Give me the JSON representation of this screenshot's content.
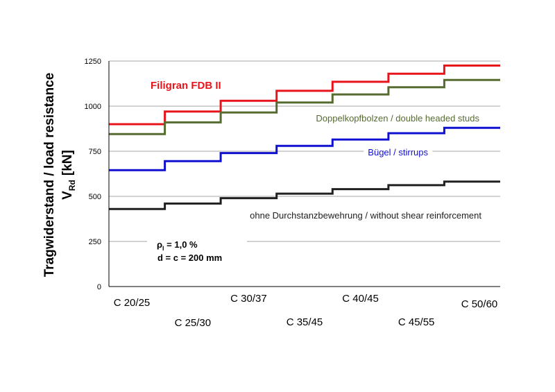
{
  "chart_data": {
    "type": "line",
    "step": true,
    "categories": [
      "C 20/25",
      "C 25/30",
      "C 30/37",
      "C 35/45",
      "C 40/45",
      "C 45/55",
      "C 50/60"
    ],
    "ylabel_line1": "Tragwiderstand / load resistance",
    "ylabel_line2_main": "V",
    "ylabel_line2_sub": "Rd",
    "ylabel_line2_unit": "[kN]",
    "ylim": [
      0,
      1250
    ],
    "yticks": [
      0,
      250,
      500,
      750,
      1000,
      1250
    ],
    "grid": true,
    "series": [
      {
        "name": "Filigran FDB II",
        "color": "#e8141c",
        "values": [
          900,
          970,
          1030,
          1085,
          1135,
          1180,
          1225
        ]
      },
      {
        "name": "Doppelkopfbolzen / double headed studs",
        "color": "#556b2f",
        "values": [
          845,
          910,
          965,
          1020,
          1065,
          1105,
          1145
        ]
      },
      {
        "name": "Bügel / stirrups",
        "color": "#1010d0",
        "values": [
          645,
          695,
          740,
          780,
          815,
          850,
          880
        ]
      },
      {
        "name": "ohne Durchstanzbewehrung  / without shear reinforcement",
        "color": "#202020",
        "values": [
          430,
          460,
          490,
          515,
          540,
          562,
          582
        ]
      }
    ],
    "annotation_rho_main": "ρ",
    "annotation_rho_sub": "l",
    "annotation_rho_value": " = 1,0 %",
    "annotation_dc": "d = c = 200 mm"
  }
}
